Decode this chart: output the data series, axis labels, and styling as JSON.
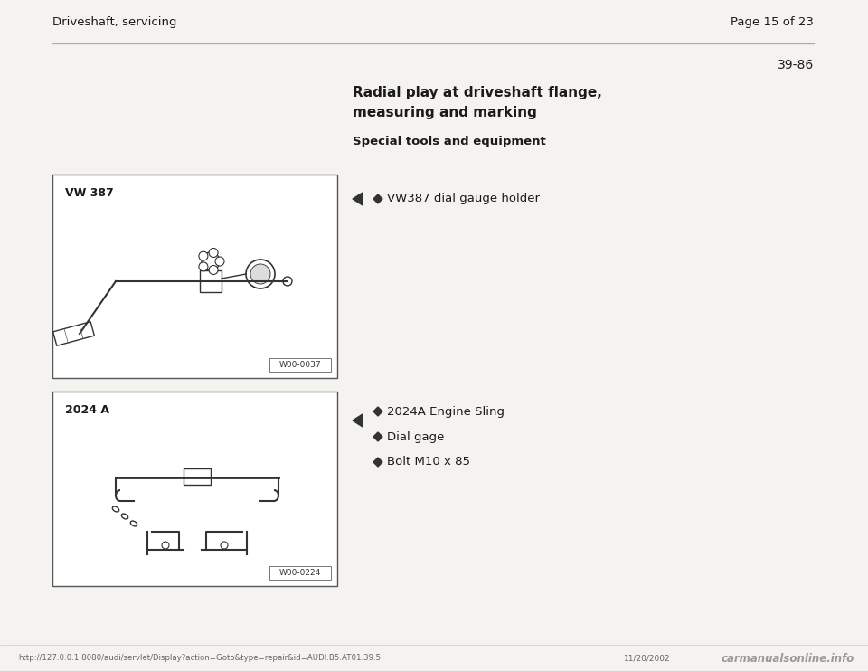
{
  "page_bg": "#f5f3ef",
  "header_left": "Driveshaft, servicing",
  "header_right": "Page 15 of 23",
  "section_number": "39-86",
  "title_line1": "Radial play at driveshaft flange,",
  "title_line2": "measuring and marking",
  "subtitle": "Special tools and equipment",
  "box1_label": "VW 387",
  "box1_code": "W00-0037",
  "box2_label": "2024 A",
  "box2_code": "W00-0224",
  "bullet1_text": "VW387 dial gauge holder",
  "bullet2_text": "2024A Engine Sling",
  "bullet3_text": "Dial gage",
  "bullet4_text": "Bolt M10 x 85",
  "footer_url": "http://127.0.0.1:8080/audi/servlet/Display?action=Goto&type=repair&id=AUDI.B5.AT01.39.5",
  "footer_date": "11/20/2002",
  "footer_brand": "carmanualsonline.info",
  "text_color": "#1a1a1a",
  "border_color": "#555555",
  "gray_text": "#555555"
}
